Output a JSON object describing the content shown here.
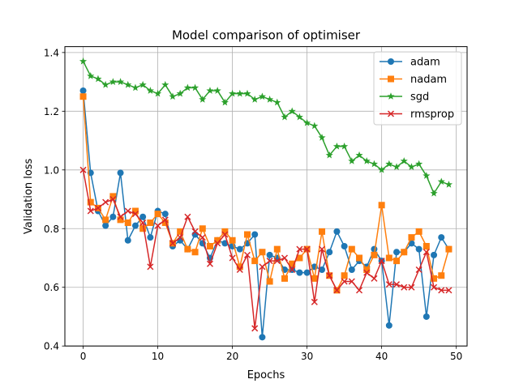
{
  "chart_data": {
    "type": "line",
    "title": "Model comparison of optimiser",
    "xlabel": "Epochs",
    "ylabel": "Validation loss",
    "xlim": [
      -2.45,
      51.45
    ],
    "ylim": [
      0.4,
      1.42
    ],
    "xticks": [
      0,
      10,
      20,
      30,
      40,
      50
    ],
    "yticks": [
      0.4,
      0.6,
      0.8,
      1.0,
      1.2,
      1.4
    ],
    "xtick_labels": [
      "0",
      "10",
      "20",
      "30",
      "40",
      "50"
    ],
    "ytick_labels": [
      "0.4",
      "0.6",
      "0.8",
      "1.0",
      "1.2",
      "1.4"
    ],
    "grid": true,
    "legend_position": "top-right",
    "x": [
      0,
      1,
      2,
      3,
      4,
      5,
      6,
      7,
      8,
      9,
      10,
      11,
      12,
      13,
      14,
      15,
      16,
      17,
      18,
      19,
      20,
      21,
      22,
      23,
      24,
      25,
      26,
      27,
      28,
      29,
      30,
      31,
      32,
      33,
      34,
      35,
      36,
      37,
      38,
      39,
      40,
      41,
      42,
      43,
      44,
      45,
      46,
      47,
      48,
      49
    ],
    "series": [
      {
        "name": "adam",
        "color": "#1f77b4",
        "marker": "circle",
        "values": [
          1.27,
          0.99,
          0.86,
          0.81,
          0.84,
          0.99,
          0.76,
          0.81,
          0.84,
          0.77,
          0.86,
          0.85,
          0.74,
          0.76,
          0.73,
          0.78,
          0.75,
          0.7,
          0.76,
          0.75,
          0.74,
          0.73,
          0.75,
          0.78,
          0.43,
          0.71,
          0.7,
          0.66,
          0.66,
          0.65,
          0.65,
          0.67,
          0.66,
          0.72,
          0.79,
          0.74,
          0.66,
          0.69,
          0.67,
          0.73,
          0.69,
          0.47,
          0.72,
          0.72,
          0.75,
          0.73,
          0.5,
          0.71,
          0.77,
          0.73
        ]
      },
      {
        "name": "nadam",
        "color": "#ff7f0e",
        "marker": "square",
        "values": [
          1.25,
          0.89,
          0.87,
          0.83,
          0.91,
          0.83,
          0.82,
          0.86,
          0.8,
          0.82,
          0.85,
          0.82,
          0.75,
          0.79,
          0.73,
          0.72,
          0.8,
          0.74,
          0.76,
          0.79,
          0.76,
          0.67,
          0.78,
          0.69,
          0.72,
          0.62,
          0.73,
          0.63,
          0.68,
          0.7,
          0.73,
          0.63,
          0.79,
          0.64,
          0.59,
          0.64,
          0.73,
          0.7,
          0.66,
          0.71,
          0.88,
          0.7,
          0.69,
          0.72,
          0.77,
          0.79,
          0.74,
          0.63,
          0.64,
          0.73
        ]
      },
      {
        "name": "sgd",
        "color": "#2ca02c",
        "marker": "star",
        "values": [
          1.37,
          1.32,
          1.31,
          1.29,
          1.3,
          1.3,
          1.29,
          1.28,
          1.29,
          1.27,
          1.26,
          1.29,
          1.25,
          1.26,
          1.28,
          1.28,
          1.24,
          1.27,
          1.27,
          1.23,
          1.26,
          1.26,
          1.26,
          1.24,
          1.25,
          1.24,
          1.23,
          1.18,
          1.2,
          1.18,
          1.16,
          1.15,
          1.11,
          1.05,
          1.08,
          1.08,
          1.03,
          1.05,
          1.03,
          1.02,
          1.0,
          1.02,
          1.01,
          1.03,
          1.01,
          1.02,
          0.98,
          0.92,
          0.96,
          0.95
        ]
      },
      {
        "name": "rmsprop",
        "color": "#d62728",
        "marker": "x",
        "values": [
          1.0,
          0.86,
          0.87,
          0.89,
          0.9,
          0.84,
          0.86,
          0.85,
          0.82,
          0.67,
          0.81,
          0.83,
          0.75,
          0.77,
          0.84,
          0.79,
          0.77,
          0.68,
          0.75,
          0.78,
          0.7,
          0.66,
          0.71,
          0.46,
          0.67,
          0.69,
          0.69,
          0.7,
          0.66,
          0.73,
          0.73,
          0.55,
          0.73,
          0.64,
          0.59,
          0.62,
          0.62,
          0.59,
          0.65,
          0.63,
          0.69,
          0.61,
          0.61,
          0.6,
          0.6,
          0.66,
          0.72,
          0.6,
          0.59,
          0.59
        ]
      }
    ]
  }
}
